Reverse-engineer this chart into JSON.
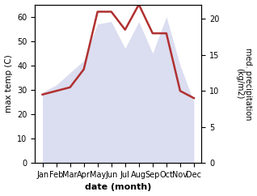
{
  "months": [
    "Jan",
    "Feb",
    "Mar",
    "Apr",
    "May",
    "Jun",
    "Jul",
    "Aug",
    "Sep",
    "Oct",
    "Nov",
    "Dec"
  ],
  "temp": [
    29,
    32,
    37,
    42,
    57,
    58,
    47,
    58,
    45,
    60,
    40,
    25
  ],
  "precip": [
    9.5,
    10,
    10.5,
    13,
    21,
    21,
    18.5,
    22,
    18,
    18,
    10,
    9
  ],
  "precip_color": "#b03030",
  "temp_fill_color": "#c8cce8",
  "temp_fill_alpha": 0.65,
  "left_ylabel": "max temp (C)",
  "right_ylabel": "med. precipitation\n(kg/m2)",
  "xlabel": "date (month)",
  "ylim_left": [
    0,
    65
  ],
  "ylim_right": [
    0,
    22
  ],
  "yticks_left": [
    0,
    10,
    20,
    30,
    40,
    50,
    60
  ],
  "yticks_right": [
    0,
    5,
    10,
    15,
    20
  ],
  "bg_color": "#ffffff"
}
